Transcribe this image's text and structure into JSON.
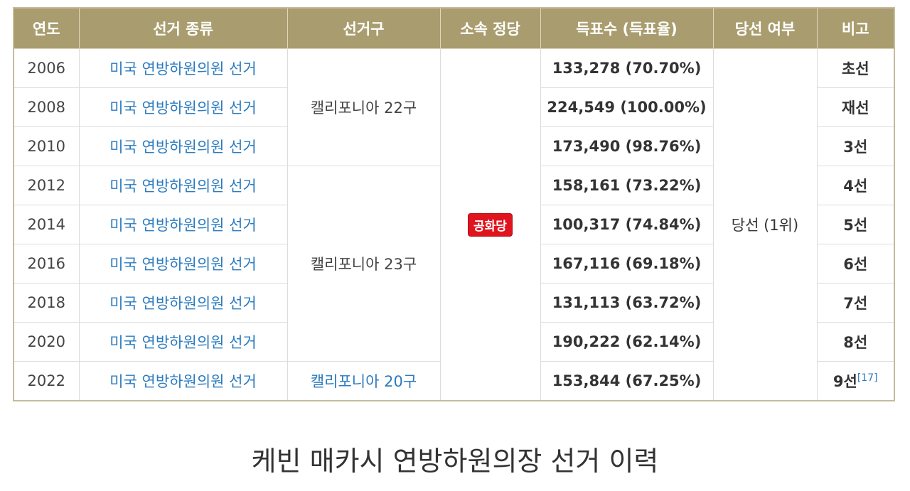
{
  "table": {
    "headers": [
      "연도",
      "선거 종류",
      "선거구",
      "소속 정당",
      "득표수 (득표율)",
      "당선 여부",
      "비고"
    ],
    "rows": [
      {
        "year": "2006",
        "type": "미국 연방하원의원 선거",
        "votes": "133,278 (70.70%)",
        "note": "초선"
      },
      {
        "year": "2008",
        "type": "미국 연방하원의원 선거",
        "votes": "224,549 (100.00%)",
        "note": "재선"
      },
      {
        "year": "2010",
        "type": "미국 연방하원의원 선거",
        "votes": "173,490 (98.76%)",
        "note": "3선"
      },
      {
        "year": "2012",
        "type": "미국 연방하원의원 선거",
        "votes": "158,161 (73.22%)",
        "note": "4선"
      },
      {
        "year": "2014",
        "type": "미국 연방하원의원 선거",
        "votes": "100,317 (74.84%)",
        "note": "5선"
      },
      {
        "year": "2016",
        "type": "미국 연방하원의원 선거",
        "votes": "167,116 (69.18%)",
        "note": "6선"
      },
      {
        "year": "2018",
        "type": "미국 연방하원의원 선거",
        "votes": "131,113 (63.72%)",
        "note": "7선"
      },
      {
        "year": "2020",
        "type": "미국 연방하원의원 선거",
        "votes": "190,222 (62.14%)",
        "note": "8선"
      },
      {
        "year": "2022",
        "type": "미국 연방하원의원 선거",
        "votes": "153,844 (67.25%)",
        "note": "9선",
        "note_ref": "[17]"
      }
    ],
    "districts": [
      "캘리포니아 22구",
      "캘리포니아 23구",
      "캘리포니아 20구"
    ],
    "party": "공화당",
    "party_color": "#e0141e",
    "result": "당선 (1위)"
  },
  "caption": "케빈 매카시 연방하원의장 선거 이력"
}
